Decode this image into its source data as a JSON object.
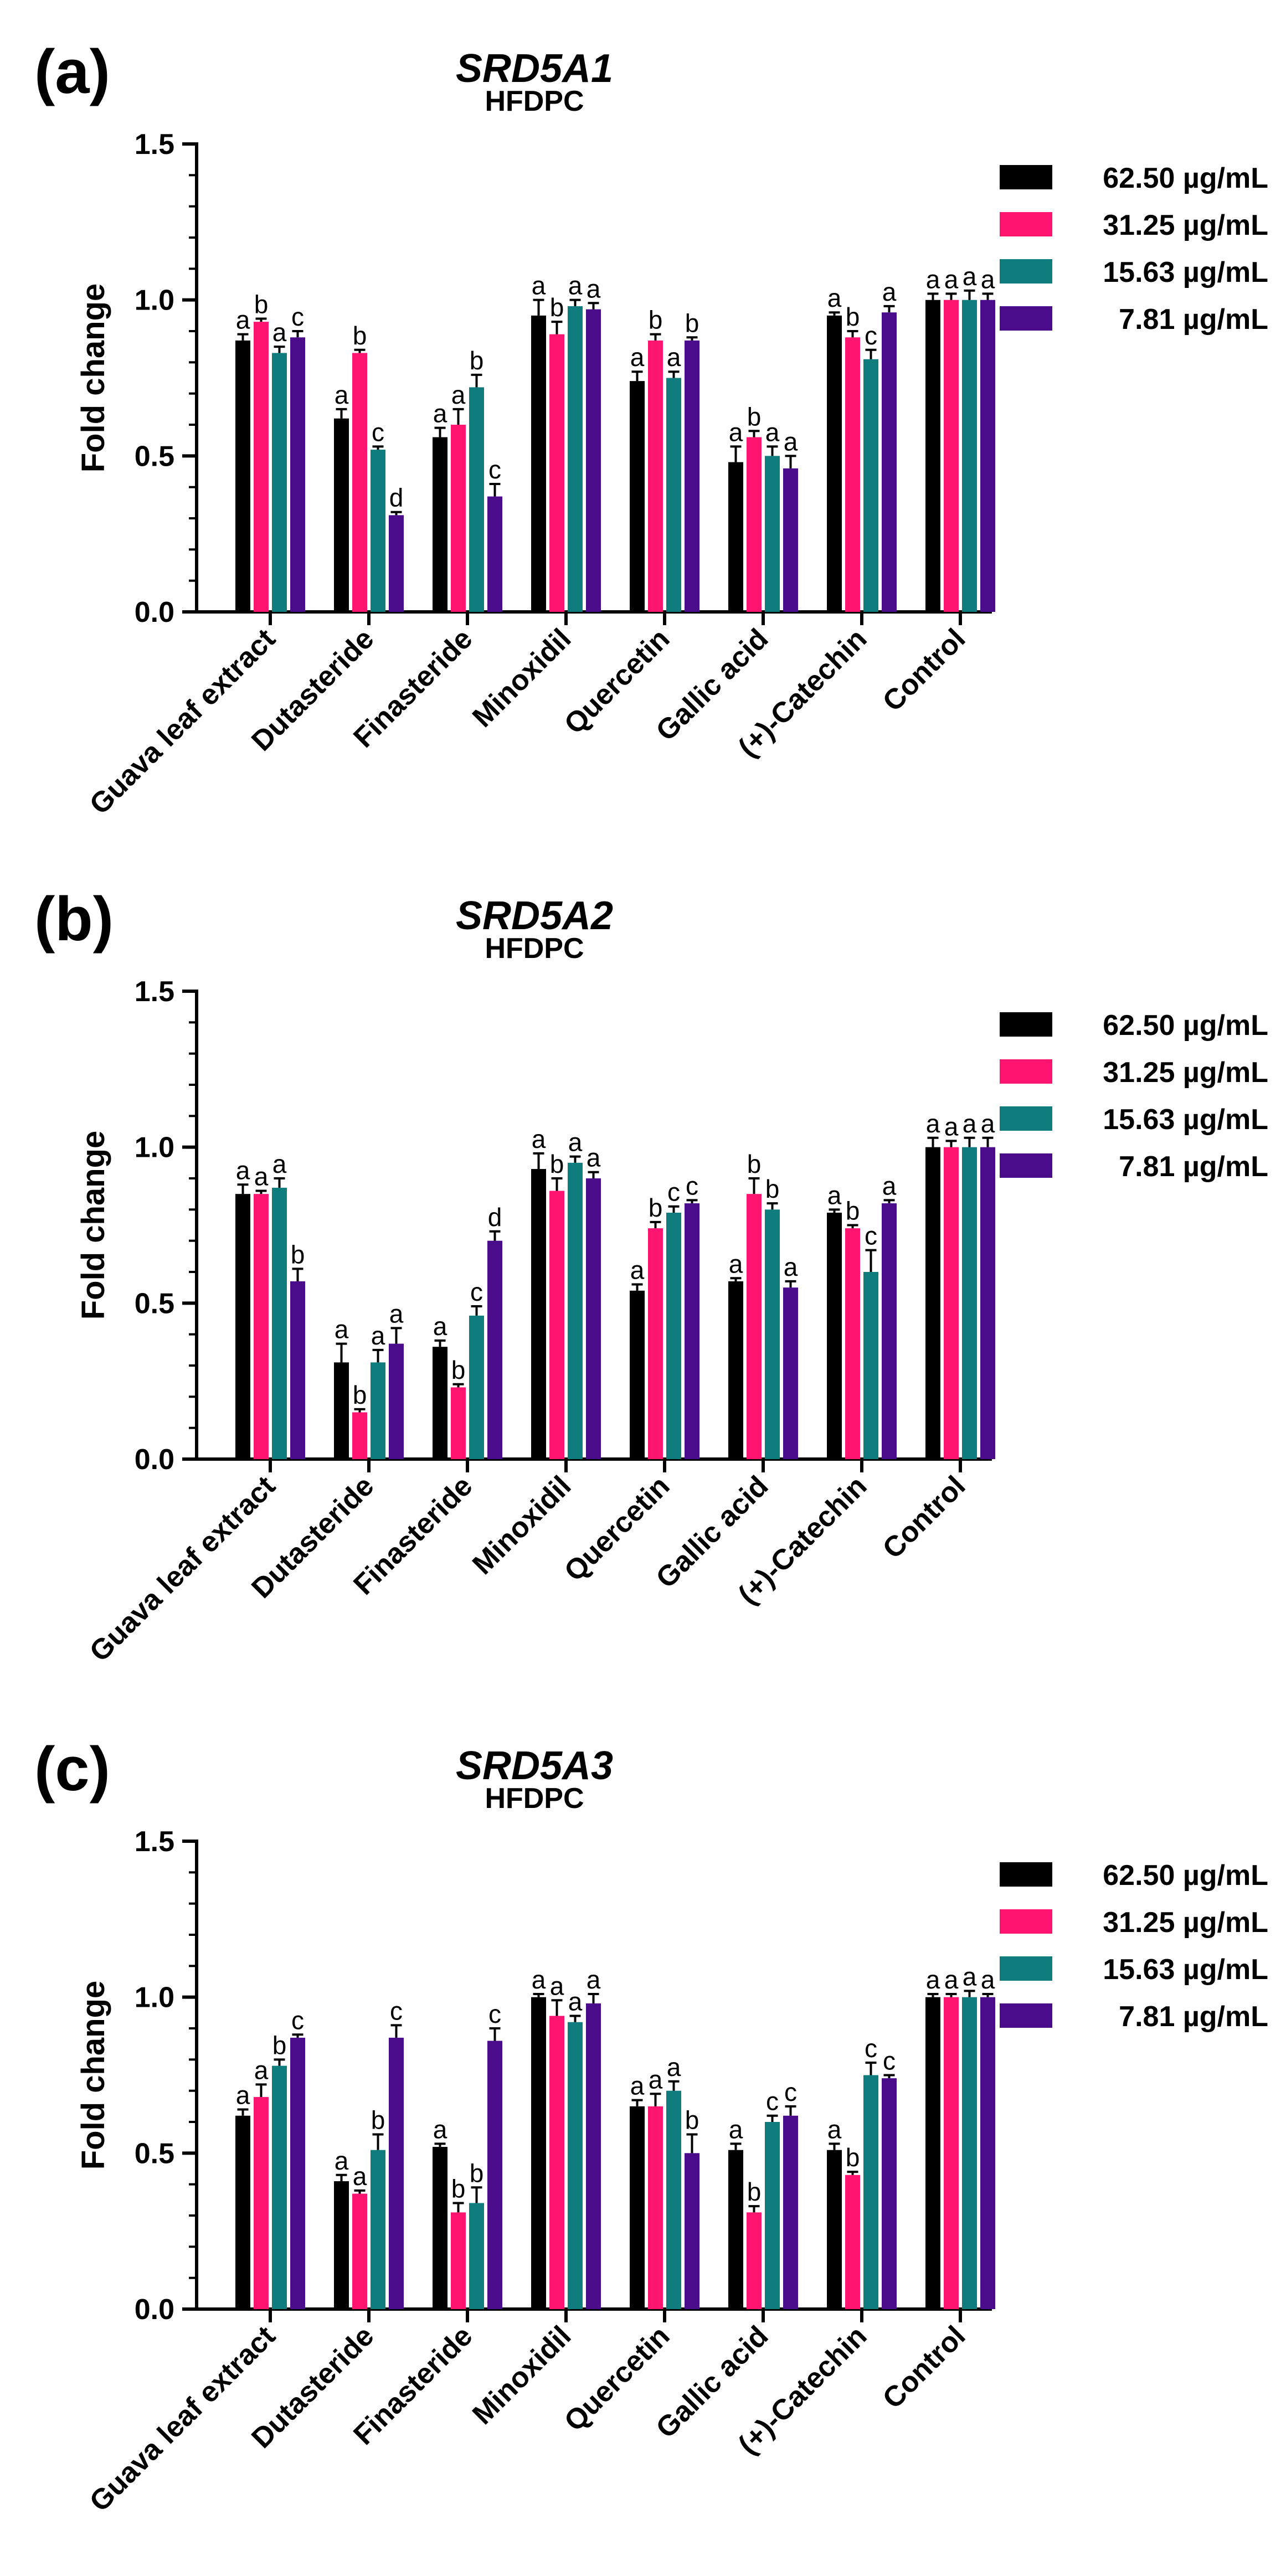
{
  "chart_data": [
    {
      "type": "bar",
      "panel_label": "(a)",
      "title": "SRD5A1",
      "subtitle": "HFDPC",
      "ylabel": "Fold change",
      "ylim": [
        0,
        1.5
      ],
      "yticks": [
        "0.0",
        "0.5",
        "1.0",
        "1.5"
      ],
      "categories": [
        "Guava leaf extract",
        "Dutasteride",
        "Finasteride",
        "Minoxidil",
        "Quercetin",
        "Gallic acid",
        "(+)-Catechin",
        "Control"
      ],
      "series": [
        {
          "name": "62.50 µg/mL",
          "color": "#000000",
          "values": [
            0.87,
            0.62,
            0.56,
            0.95,
            0.74,
            0.48,
            0.95,
            1.0
          ],
          "errors": [
            0.02,
            0.03,
            0.03,
            0.05,
            0.03,
            0.05,
            0.01,
            0.02
          ],
          "letters": [
            "a",
            "a",
            "a",
            "a",
            "a",
            "a",
            "a",
            "a"
          ]
        },
        {
          "name": "31.25 µg/mL",
          "color": "#ff1470",
          "values": [
            0.93,
            0.83,
            0.6,
            0.89,
            0.87,
            0.56,
            0.88,
            1.0
          ],
          "errors": [
            0.01,
            0.01,
            0.05,
            0.04,
            0.02,
            0.02,
            0.02,
            0.02
          ],
          "letters": [
            "b",
            "b",
            "a",
            "b",
            "b",
            "b",
            "b",
            "a"
          ]
        },
        {
          "name": "15.63 µg/mL",
          "color": "#0f7d7d",
          "values": [
            0.83,
            0.52,
            0.72,
            0.98,
            0.75,
            0.5,
            0.81,
            1.0
          ],
          "errors": [
            0.02,
            0.01,
            0.04,
            0.02,
            0.02,
            0.03,
            0.03,
            0.03
          ],
          "letters": [
            "a",
            "c",
            "b",
            "a",
            "a",
            "a",
            "c",
            "a"
          ]
        },
        {
          "name": "7.81 µg/mL",
          "color": "#4b0c8c",
          "values": [
            0.88,
            0.31,
            0.37,
            0.97,
            0.87,
            0.46,
            0.96,
            1.0
          ],
          "errors": [
            0.02,
            0.01,
            0.04,
            0.02,
            0.01,
            0.04,
            0.02,
            0.02
          ],
          "letters": [
            "c",
            "d",
            "c",
            "a",
            "b",
            "a",
            "a",
            "a"
          ]
        }
      ]
    },
    {
      "type": "bar",
      "panel_label": "(b)",
      "title": "SRD5A2",
      "subtitle": "HFDPC",
      "ylabel": "Fold change",
      "ylim": [
        0,
        1.5
      ],
      "yticks": [
        "0.0",
        "0.5",
        "1.0",
        "1.5"
      ],
      "categories": [
        "Guava leaf extract",
        "Dutasteride",
        "Finasteride",
        "Minoxidil",
        "Quercetin",
        "Gallic acid",
        "(+)-Catechin",
        "Control"
      ],
      "series": [
        {
          "name": "62.50 µg/mL",
          "color": "#000000",
          "values": [
            0.85,
            0.31,
            0.36,
            0.93,
            0.54,
            0.57,
            0.79,
            1.0
          ],
          "errors": [
            0.03,
            0.06,
            0.02,
            0.05,
            0.02,
            0.01,
            0.01,
            0.03
          ],
          "letters": [
            "a",
            "a",
            "a",
            "a",
            "a",
            "a",
            "a",
            "a"
          ]
        },
        {
          "name": "31.25 µg/mL",
          "color": "#ff1470",
          "values": [
            0.85,
            0.15,
            0.23,
            0.86,
            0.74,
            0.85,
            0.74,
            1.0
          ],
          "errors": [
            0.01,
            0.01,
            0.01,
            0.04,
            0.02,
            0.05,
            0.01,
            0.02
          ],
          "letters": [
            "a",
            "b",
            "b",
            "b",
            "b",
            "b",
            "b",
            "a"
          ]
        },
        {
          "name": "15.63 µg/mL",
          "color": "#0f7d7d",
          "values": [
            0.87,
            0.31,
            0.46,
            0.95,
            0.79,
            0.8,
            0.6,
            1.0
          ],
          "errors": [
            0.03,
            0.04,
            0.03,
            0.02,
            0.02,
            0.02,
            0.07,
            0.03
          ],
          "letters": [
            "a",
            "a",
            "c",
            "a",
            "c",
            "b",
            "c",
            "a"
          ]
        },
        {
          "name": "7.81 µg/mL",
          "color": "#4b0c8c",
          "values": [
            0.57,
            0.37,
            0.7,
            0.9,
            0.82,
            0.55,
            0.82,
            1.0
          ],
          "errors": [
            0.04,
            0.05,
            0.03,
            0.02,
            0.01,
            0.02,
            0.01,
            0.03
          ],
          "letters": [
            "b",
            "a",
            "d",
            "a",
            "c",
            "a",
            "a",
            "a"
          ]
        }
      ]
    },
    {
      "type": "bar",
      "panel_label": "(c)",
      "title": "SRD5A3",
      "subtitle": "HFDPC",
      "ylabel": "Fold change",
      "ylim": [
        0,
        1.5
      ],
      "yticks": [
        "0.0",
        "0.5",
        "1.0",
        "1.5"
      ],
      "categories": [
        "Guava leaf extract",
        "Dutasteride",
        "Finasteride",
        "Minoxidil",
        "Quercetin",
        "Gallic acid",
        "(+)-Catechin",
        "Control"
      ],
      "series": [
        {
          "name": "62.50 µg/mL",
          "color": "#000000",
          "values": [
            0.62,
            0.41,
            0.52,
            1.0,
            0.65,
            0.51,
            0.51,
            1.0
          ],
          "errors": [
            0.02,
            0.02,
            0.01,
            0.01,
            0.02,
            0.02,
            0.02,
            0.01
          ],
          "letters": [
            "a",
            "a",
            "a",
            "a",
            "a",
            "a",
            "a",
            "a"
          ]
        },
        {
          "name": "31.25 µg/mL",
          "color": "#ff1470",
          "values": [
            0.68,
            0.37,
            0.31,
            0.94,
            0.65,
            0.31,
            0.43,
            1.0
          ],
          "errors": [
            0.04,
            0.01,
            0.03,
            0.05,
            0.04,
            0.02,
            0.01,
            0.01
          ],
          "letters": [
            "a",
            "a",
            "b",
            "a",
            "a",
            "b",
            "b",
            "a"
          ]
        },
        {
          "name": "15.63 µg/mL",
          "color": "#0f7d7d",
          "values": [
            0.78,
            0.51,
            0.34,
            0.92,
            0.7,
            0.6,
            0.75,
            1.0
          ],
          "errors": [
            0.02,
            0.05,
            0.05,
            0.02,
            0.03,
            0.02,
            0.04,
            0.02
          ],
          "letters": [
            "b",
            "b",
            "b",
            "a",
            "a",
            "c",
            "c",
            "a"
          ]
        },
        {
          "name": "7.81 µg/mL",
          "color": "#4b0c8c",
          "values": [
            0.87,
            0.87,
            0.86,
            0.98,
            0.5,
            0.62,
            0.74,
            1.0
          ],
          "errors": [
            0.01,
            0.04,
            0.04,
            0.03,
            0.06,
            0.03,
            0.01,
            0.01
          ],
          "letters": [
            "c",
            "c",
            "c",
            "a",
            "b",
            "c",
            "c",
            "a"
          ]
        }
      ]
    }
  ]
}
